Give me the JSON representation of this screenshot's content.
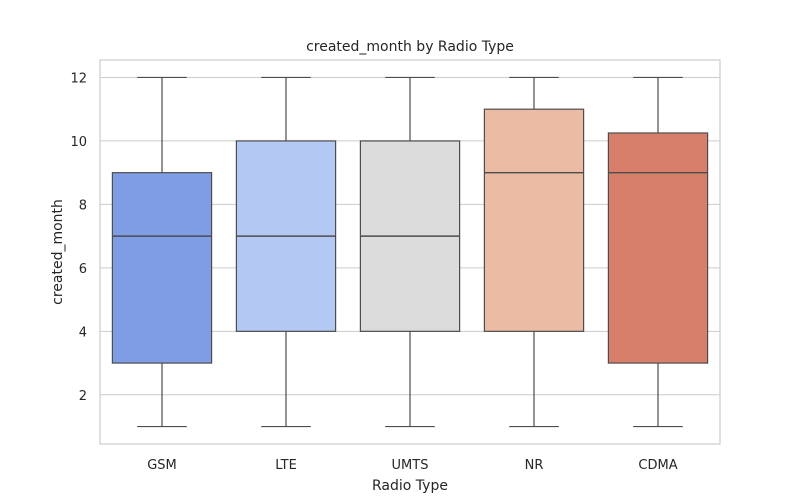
{
  "chart_data": {
    "type": "box",
    "title": "created_month by Radio Type",
    "xlabel": "Radio Type",
    "ylabel": "created_month",
    "ylim": [
      0.45,
      12.55
    ],
    "yticks": [
      2,
      4,
      6,
      8,
      10,
      12
    ],
    "grid": true,
    "legend": "none",
    "categories": [
      "GSM",
      "LTE",
      "UMTS",
      "NR",
      "CDMA"
    ],
    "boxes": [
      {
        "category": "GSM",
        "min": 1,
        "q1": 3,
        "median": 7,
        "q3": 9,
        "max": 12,
        "color": "#7f9de5"
      },
      {
        "category": "LTE",
        "min": 1,
        "q1": 4,
        "median": 7,
        "q3": 10,
        "max": 12,
        "color": "#b4c8f4"
      },
      {
        "category": "UMTS",
        "min": 1,
        "q1": 4,
        "median": 7,
        "q3": 10,
        "max": 12,
        "color": "#dcdcdc"
      },
      {
        "category": "NR",
        "min": 1,
        "q1": 4,
        "median": 9,
        "q3": 11,
        "max": 12,
        "color": "#ecbba4"
      },
      {
        "category": "CDMA",
        "min": 1,
        "q1": 3,
        "median": 9,
        "q3": 10.25,
        "max": 12,
        "color": "#d77f6b"
      }
    ]
  }
}
